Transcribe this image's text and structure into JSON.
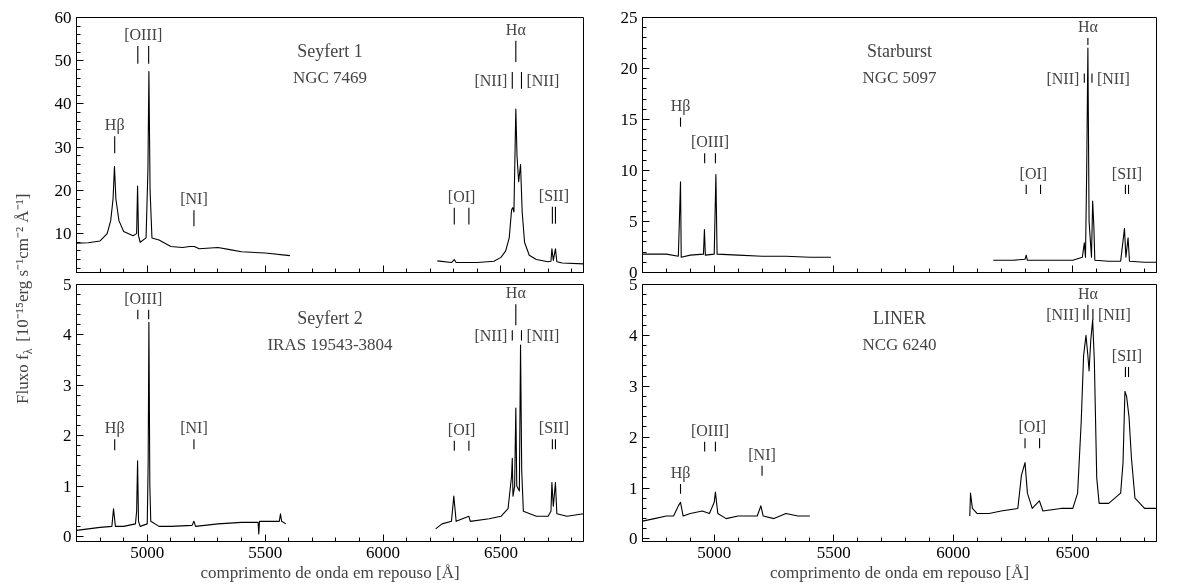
{
  "chart_data": [
    {
      "type": "line",
      "title": "Seyfert 1",
      "subtitle": "NGC 7469",
      "ylabel": "Fluxo f$_{λ}$ [10⁻¹⁵erg s⁻¹cm⁻² Å⁻¹]",
      "xlim": [
        4700,
        6850
      ],
      "xticks": [
        5000,
        5500,
        6000,
        6500
      ],
      "ylim": [
        1,
        60
      ],
      "yticks": [
        10,
        20,
        30,
        40,
        50,
        60
      ],
      "tick_labels": "y",
      "grid": false,
      "series": [
        {
          "color": "#000000",
          "x": [
            4700,
            4750,
            4800,
            4830,
            4845,
            4855,
            4861,
            4867,
            4880,
            4900,
            4940,
            4955,
            4959,
            4963,
            4970,
            4995,
            5003,
            5007,
            5012,
            5020,
            5050,
            5100,
            5150,
            5180,
            5200,
            5220,
            5300,
            5350,
            5400,
            5500,
            5605,
            5900,
            6230,
            6290,
            6302,
            6310,
            6400,
            6470,
            6500,
            6520,
            6535,
            6545,
            6550,
            6555,
            6560,
            6563,
            6568,
            6575,
            6583,
            6590,
            6600,
            6620,
            6650,
            6700,
            6712,
            6716,
            6722,
            6731,
            6737,
            6760,
            6850
          ],
          "values": [
            7.8,
            7.9,
            8.3,
            10,
            13,
            18,
            25.5,
            18,
            13,
            10.5,
            9.5,
            10,
            21,
            9.5,
            8,
            9,
            25,
            47.5,
            20,
            9,
            8.5,
            7,
            6.8,
            7,
            7,
            6.5,
            6.8,
            6.3,
            5.8,
            5.5,
            4.9,
            null,
            3.7,
            3.3,
            4,
            3.3,
            3.3,
            3.6,
            4.5,
            6,
            9,
            15.5,
            16,
            15,
            30,
            38.8,
            28,
            22,
            26,
            15,
            8,
            5,
            4,
            3.5,
            3.6,
            6.5,
            3.8,
            6.5,
            3.5,
            3.2,
            3
          ]
        },
        {
          "color": "#000000",
          "x": [
            4862,
            4862
          ],
          "values": [
            32.5,
            28.6
          ]
        },
        {
          "color": "#000000",
          "x": [
            4960,
            4960,
            4983,
            5006,
            5006
          ],
          "values": [
            53.4,
            49.3,
            null,
            53.4,
            49.3
          ]
        },
        {
          "color": "#000000",
          "x": [
            5198,
            5198
          ],
          "values": [
            15.4,
            11.7
          ]
        },
        {
          "color": "#000000",
          "x": [
            6302,
            6302,
            6333,
            6364,
            6364
          ],
          "values": [
            16,
            12.1,
            null,
            16,
            12.1
          ]
        },
        {
          "color": "#000000",
          "x": [
            6563,
            6563
          ],
          "values": [
            54.6,
            49.7
          ]
        },
        {
          "color": "#000000",
          "x": [
            6548,
            6548
          ],
          "values": [
            47.4,
            43.5
          ]
        },
        {
          "color": "#000000",
          "x": [
            6587,
            6587
          ],
          "values": [
            47.4,
            43.5
          ]
        },
        {
          "color": "#000000",
          "x": [
            6718,
            6718,
            6724,
            6731,
            6731
          ],
          "values": [
            16.2,
            12.3,
            null,
            16.2,
            12.3
          ]
        }
      ],
      "annotations": [
        "Hβ",
        "[OIII]",
        "[NI]",
        "[OI]",
        "Hα",
        "[NII]",
        "[NII]",
        "[SII]"
      ]
    },
    {
      "type": "line",
      "title": "Starburst",
      "subtitle": "NGC 5097",
      "xlim": [
        4700,
        6850
      ],
      "xticks": [
        5000,
        5500,
        6000,
        6500
      ],
      "ylim": [
        0,
        25
      ],
      "yticks": [
        0,
        5,
        10,
        15,
        20,
        25
      ],
      "tick_labels": "y",
      "grid": false,
      "series": [
        {
          "color": "#000000",
          "x": [
            4700,
            4800,
            4850,
            4859,
            4862,
            4900,
            4955,
            4959,
            4963,
            5000,
            5007,
            5012,
            5100,
            5200,
            5300,
            5400,
            5488,
            5800,
            6167,
            6250,
            6300,
            6305,
            6310,
            6400,
            6500,
            6540,
            6548,
            6553,
            6558,
            6563,
            6568,
            6578,
            6583,
            6588,
            6592,
            6650,
            6700,
            6716,
            6722,
            6731,
            6737,
            6800,
            6850
          ],
          "values": [
            1.8,
            1.8,
            1.6,
            8.9,
            1.5,
            1.7,
            1.8,
            4.2,
            1.7,
            1.8,
            9.6,
            1.8,
            1.7,
            1.6,
            1.6,
            1.5,
            1.5,
            null,
            1.2,
            1.2,
            1.3,
            1.7,
            1.2,
            1.2,
            1.2,
            1.5,
            2.9,
            1.5,
            10,
            22,
            5,
            1.5,
            7,
            4.5,
            1.2,
            1.1,
            1.1,
            4.3,
            1.5,
            3.4,
            1.1,
            1,
            1
          ]
        },
        {
          "color": "#000000",
          "x": [
            4859,
            4859
          ],
          "values": [
            15.2,
            14.3
          ]
        },
        {
          "color": "#000000",
          "x": [
            4960,
            4960,
            4982,
            5005,
            5005
          ],
          "values": [
            11.7,
            10.7,
            null,
            11.7,
            10.7
          ]
        },
        {
          "color": "#000000",
          "x": [
            6305,
            6305,
            6335,
            6365,
            6365
          ],
          "values": [
            8.6,
            7.7,
            null,
            8.6,
            7.7
          ]
        },
        {
          "color": "#000000",
          "x": [
            6563,
            6563
          ],
          "values": [
            23.0,
            22.3
          ]
        },
        {
          "color": "#000000",
          "x": [
            6548,
            6548
          ],
          "values": [
            19.5,
            18.6
          ]
        },
        {
          "color": "#000000",
          "x": [
            6580,
            6580
          ],
          "values": [
            19.5,
            18.6
          ]
        },
        {
          "color": "#000000",
          "x": [
            6720,
            6720,
            6726,
            6733,
            6733
          ],
          "values": [
            8.6,
            7.7,
            null,
            8.6,
            7.7
          ]
        }
      ],
      "annotations": [
        "Hβ",
        "[OIII]",
        "[OI]",
        "Hα",
        "[NII]",
        "[NII]",
        "[SII]"
      ]
    },
    {
      "type": "line",
      "title": "Seyfert 2",
      "subtitle": "IRAS 19543-3804",
      "xlabel": "comprimento de onda em repouso [Å]",
      "xlim": [
        4700,
        6850
      ],
      "xticks": [
        5000,
        5500,
        6000,
        6500
      ],
      "ylim": [
        -0.1,
        5
      ],
      "yticks": [
        0,
        1,
        2,
        3,
        4,
        5
      ],
      "grid": false,
      "series": [
        {
          "color": "#000000",
          "x": [
            4700,
            4750,
            4800,
            4850,
            4857,
            4865,
            4900,
            4950,
            4955,
            4959,
            4963,
            4970,
            5000,
            5004,
            5007,
            5011,
            5015,
            5050,
            5100,
            5190,
            5198,
            5205,
            5300,
            5400,
            5470,
            5473,
            5476,
            5500,
            5560,
            5565,
            5570,
            5588,
            5900,
            6223,
            6250,
            6290,
            6300,
            6310,
            6364,
            6370,
            6450,
            6500,
            6530,
            6545,
            6548,
            6551,
            6558,
            6563,
            6567,
            6578,
            6583,
            6588,
            6595,
            6650,
            6700,
            6712,
            6716,
            6722,
            6731,
            6737,
            6780,
            6850
          ],
          "values": [
            0.12,
            0.15,
            0.18,
            0.2,
            0.55,
            0.2,
            0.2,
            0.25,
            0.5,
            1.5,
            0.3,
            0.2,
            0.25,
            1.5,
            4.25,
            1.0,
            0.3,
            0.2,
            0.2,
            0.22,
            0.3,
            0.2,
            0.25,
            0.28,
            0.28,
            0.05,
            0.3,
            0.3,
            0.3,
            0.45,
            0.3,
            0.25,
            null,
            0.15,
            0.25,
            0.3,
            0.8,
            0.3,
            0.4,
            0.3,
            0.35,
            0.4,
            0.55,
            1.2,
            1.55,
            0.8,
            1.0,
            2.55,
            1.0,
            0.9,
            3.8,
            1.3,
            0.5,
            0.4,
            0.4,
            0.5,
            1.07,
            0.6,
            1.07,
            0.45,
            0.4,
            0.45
          ]
        },
        {
          "color": "#000000",
          "x": [
            4960,
            4960,
            4983,
            5006,
            5006
          ],
          "values": [
            4.5,
            4.31,
            null,
            4.5,
            4.31
          ]
        },
        {
          "color": "#000000",
          "x": [
            4862,
            4862
          ],
          "values": [
            1.93,
            1.71
          ]
        },
        {
          "color": "#000000",
          "x": [
            5198,
            5198
          ],
          "values": [
            1.93,
            1.73
          ]
        },
        {
          "color": "#000000",
          "x": [
            6302,
            6302,
            6333,
            6364,
            6364
          ],
          "values": [
            1.9,
            1.7,
            null,
            1.9,
            1.7
          ]
        },
        {
          "color": "#000000",
          "x": [
            6718,
            6718,
            6724,
            6731,
            6731
          ],
          "values": [
            1.93,
            1.73,
            null,
            1.93,
            1.73
          ]
        },
        {
          "color": "#000000",
          "x": [
            6563,
            6563
          ],
          "values": [
            4.61,
            4.19
          ]
        },
        {
          "color": "#000000",
          "x": [
            6548,
            6548
          ],
          "values": [
            4.09,
            3.89
          ]
        },
        {
          "color": "#000000",
          "x": [
            6587,
            6587
          ],
          "values": [
            4.09,
            3.89
          ]
        }
      ],
      "annotations": [
        "[OIII]",
        "Hβ",
        "[NI]",
        "[OI]",
        "[SII]",
        "Hα",
        "[NII]",
        "[NII]"
      ]
    },
    {
      "type": "line",
      "title": "LINER",
      "subtitle": "NCG 6240",
      "xlabel": "comprimento de onda em repouso [Å]",
      "xlim": [
        4700,
        6850
      ],
      "xticks": [
        5000,
        5500,
        6000,
        6500
      ],
      "ylim": [
        -0.05,
        5
      ],
      "yticks": [
        0,
        1,
        2,
        3,
        4,
        5
      ],
      "grid": false,
      "series": [
        {
          "color": "#000000",
          "x": [
            4700,
            4750,
            4800,
            4830,
            4850,
            4859,
            4870,
            4900,
            4950,
            4980,
            5000,
            5005,
            5015,
            5050,
            5100,
            5180,
            5195,
            5205,
            5250,
            5300,
            5350,
            5400,
            5700,
            6069,
            6072,
            6080,
            6100,
            6150,
            6200,
            6270,
            6285,
            6300,
            6310,
            6330,
            6350,
            6360,
            6375,
            6450,
            6500,
            6520,
            6535,
            6545,
            6555,
            6563,
            6568,
            6575,
            6583,
            6590,
            6600,
            6610,
            6650,
            6700,
            6710,
            6718,
            6725,
            6735,
            6745,
            6760,
            6800,
            6850
          ],
          "values": [
            0.35,
            0.4,
            0.45,
            0.45,
            0.65,
            0.72,
            0.45,
            0.5,
            0.55,
            0.5,
            0.72,
            0.92,
            0.5,
            0.4,
            0.45,
            0.45,
            0.65,
            0.45,
            0.4,
            0.5,
            0.45,
            0.45,
            null,
            0.45,
            0.9,
            0.6,
            0.5,
            0.5,
            0.55,
            0.6,
            1.25,
            1.5,
            0.9,
            0.6,
            0.7,
            0.75,
            0.55,
            0.6,
            0.6,
            0.9,
            2.3,
            3.6,
            4.0,
            3.6,
            3.3,
            3.9,
            4.3,
            3.5,
            1.2,
            0.7,
            0.7,
            0.9,
            1.5,
            2.9,
            2.8,
            2.4,
            1.6,
            0.8,
            0.6,
            0.6
          ]
        },
        {
          "color": "#000000",
          "x": [
            4859,
            4859
          ],
          "values": [
            1.08,
            0.89
          ]
        },
        {
          "color": "#000000",
          "x": [
            4960,
            4960,
            4982,
            5005,
            5005
          ],
          "values": [
            1.91,
            1.72,
            null,
            1.91,
            1.72
          ]
        },
        {
          "color": "#000000",
          "x": [
            5200,
            5200
          ],
          "values": [
            1.44,
            1.24
          ]
        },
        {
          "color": "#000000",
          "x": [
            6300,
            6300,
            6330,
            6361,
            6361
          ],
          "values": [
            1.98,
            1.78,
            null,
            1.98,
            1.78
          ]
        },
        {
          "color": "#000000",
          "x": [
            6563,
            6563
          ],
          "values": [
            4.6,
            4.3
          ]
        },
        {
          "color": "#000000",
          "x": [
            6547,
            6547
          ],
          "values": [
            4.52,
            4.3
          ]
        },
        {
          "color": "#000000",
          "x": [
            6584,
            6584
          ],
          "values": [
            4.52,
            4.3
          ]
        },
        {
          "color": "#000000",
          "x": [
            6720,
            6720,
            6726,
            6733,
            6733
          ],
          "values": [
            3.38,
            3.18,
            null,
            3.38,
            3.18
          ]
        }
      ],
      "annotations": [
        "Hβ",
        "[OIII]",
        "[NI]",
        "[OI]",
        "Hα",
        "[NII]",
        "[NII]",
        "[SII]"
      ]
    }
  ]
}
